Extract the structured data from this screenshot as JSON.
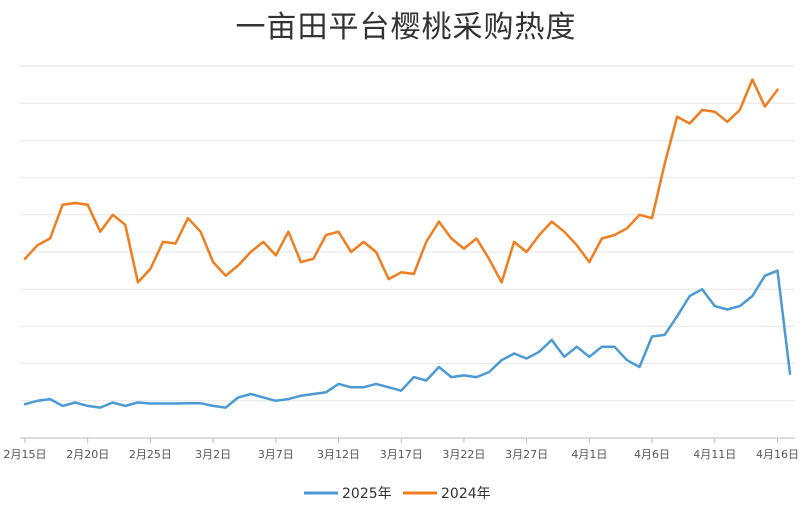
{
  "chart_data": {
    "type": "line",
    "title": "一亩田平台樱桃采购热度",
    "xlabel": "",
    "ylabel": "",
    "grid": true,
    "legend_position": "bottom",
    "y_axis_labels_shown": false,
    "x_tick_labels": [
      "2月15日",
      "2月20日",
      "2月25日",
      "3月2日",
      "3月7日",
      "3月12日",
      "3月17日",
      "3月22日",
      "3月27日",
      "4月1日",
      "4月6日",
      "4月11日",
      "4月16日"
    ],
    "x_tick_index": [
      0,
      5,
      10,
      15,
      20,
      25,
      30,
      35,
      40,
      45,
      50,
      55,
      60
    ],
    "series": [
      {
        "name": "2025年",
        "color": "#4a9ad4",
        "values": [
          10,
          11,
          11.5,
          9.5,
          10.5,
          9.5,
          9,
          10.5,
          9.5,
          10.5,
          10.2,
          10.2,
          10.2,
          10.3,
          10.3,
          9.5,
          9,
          12,
          13,
          12,
          11,
          11.5,
          12.5,
          13,
          13.5,
          16,
          15,
          15,
          16,
          15,
          14,
          18,
          17,
          21,
          18,
          18.5,
          18,
          19.5,
          23,
          25,
          23.5,
          25.5,
          29,
          24,
          27,
          24,
          27,
          27,
          23,
          21,
          30,
          30.5,
          36,
          42,
          44,
          39,
          38,
          39,
          42,
          48,
          49.5,
          19
        ]
      },
      {
        "name": "2024年",
        "color": "#f07d1e",
        "values": [
          53,
          57,
          59,
          69,
          69.5,
          69,
          61,
          66,
          63,
          46,
          50,
          58,
          57.5,
          65,
          61,
          52,
          48,
          51,
          55,
          58,
          54,
          61,
          52,
          53,
          60,
          61,
          55,
          58,
          55,
          47,
          49,
          48.5,
          58,
          64,
          59,
          56,
          59,
          53,
          46,
          58,
          55,
          60,
          64,
          61,
          57,
          52,
          59,
          60,
          62,
          66,
          65,
          81,
          95,
          93,
          97,
          96.5,
          93.5,
          97,
          106,
          98,
          103
        ]
      }
    ]
  }
}
